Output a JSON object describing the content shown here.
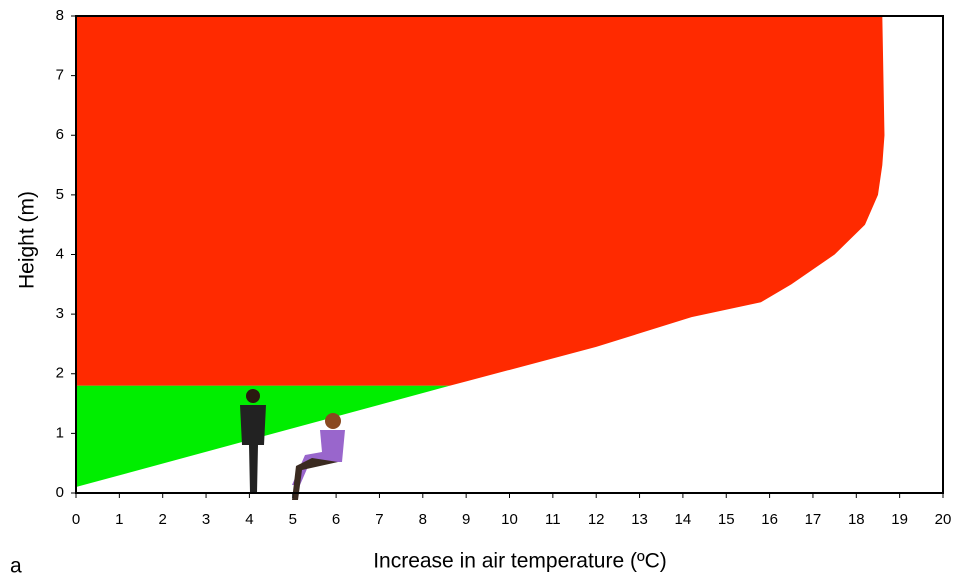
{
  "chart_data": {
    "type": "area",
    "xlabel": "Increase in air temperature (ºC)",
    "ylabel": "Height (m)",
    "panel_label": "a",
    "series": [
      {
        "color": "#00ee00",
        "x": [
          0,
          8.63
        ],
        "values": [
          0.1,
          1.8
        ]
      },
      {
        "color": "#ff2a00",
        "x": [
          8.63,
          12,
          14.2,
          15.8,
          16.5,
          17.5,
          18.2,
          18.5,
          18.6,
          18.65,
          18.6
        ],
        "values": [
          1.8,
          2.45,
          2.95,
          3.2,
          3.5,
          4.0,
          4.5,
          5.0,
          5.5,
          6.0,
          8.0
        ]
      }
    ],
    "xlim": [
      0,
      20
    ],
    "xticks": [
      0,
      1,
      2,
      3,
      4,
      5,
      6,
      7,
      8,
      9,
      10,
      11,
      12,
      13,
      14,
      15,
      16,
      17,
      18,
      19,
      20
    ],
    "ylim": [
      0,
      8
    ],
    "yticks": [
      0,
      1,
      2,
      3,
      4,
      5,
      6,
      7,
      8
    ]
  }
}
